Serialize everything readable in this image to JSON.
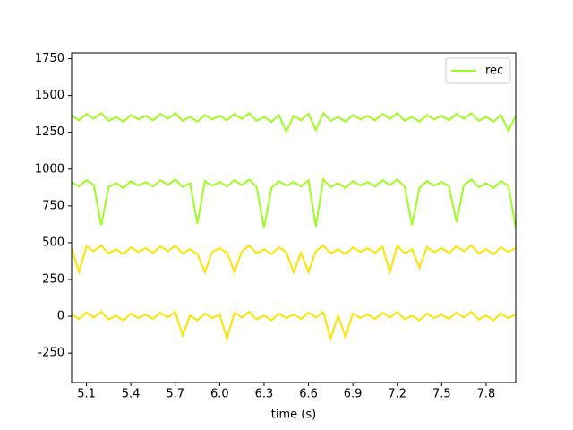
{
  "chart_data": {
    "type": "line",
    "xlabel": "time (s)",
    "x": [
      5.0,
      5.05,
      5.1,
      5.15,
      5.2,
      5.25,
      5.3,
      5.35,
      5.4,
      5.45,
      5.5,
      5.55,
      5.6,
      5.65,
      5.7,
      5.75,
      5.8,
      5.85,
      5.9,
      5.95,
      6.0,
      6.05,
      6.1,
      6.15,
      6.2,
      6.25,
      6.3,
      6.35,
      6.4,
      6.45,
      6.5,
      6.55,
      6.6,
      6.65,
      6.7,
      6.75,
      6.8,
      6.85,
      6.9,
      6.95,
      7.0,
      7.05,
      7.1,
      7.15,
      7.2,
      7.25,
      7.3,
      7.35,
      7.4,
      7.45,
      7.5,
      7.55,
      7.6,
      7.65,
      7.7,
      7.75,
      7.8,
      7.85,
      7.9,
      7.95,
      8.0
    ],
    "series": [
      {
        "name": "rec",
        "color": "#9cff1e",
        "values": [
          1362,
          1332,
          1375,
          1342,
          1380,
          1328,
          1355,
          1322,
          1368,
          1338,
          1362,
          1332,
          1375,
          1342,
          1380,
          1328,
          1355,
          1322,
          1368,
          1338,
          1362,
          1332,
          1375,
          1342,
          1380,
          1328,
          1355,
          1322,
          1368,
          1255,
          1362,
          1332,
          1375,
          1265,
          1380,
          1328,
          1355,
          1322,
          1368,
          1338,
          1362,
          1332,
          1375,
          1342,
          1380,
          1328,
          1355,
          1322,
          1368,
          1338,
          1362,
          1332,
          1375,
          1342,
          1380,
          1328,
          1355,
          1322,
          1368,
          1260,
          1362
        ]
      },
      {
        "color": "#9cff1e",
        "values": [
          912,
          882,
          925,
          892,
          620,
          878,
          905,
          872,
          918,
          888,
          912,
          882,
          925,
          892,
          930,
          878,
          905,
          630,
          918,
          888,
          912,
          882,
          925,
          892,
          930,
          878,
          600,
          872,
          918,
          888,
          912,
          882,
          925,
          610,
          930,
          878,
          905,
          872,
          918,
          888,
          912,
          882,
          925,
          892,
          930,
          878,
          620,
          872,
          918,
          888,
          912,
          882,
          640,
          892,
          930,
          878,
          905,
          872,
          918,
          888,
          600
        ]
      },
      {
        "color": "#ffe400",
        "values": [
          462,
          300,
          475,
          442,
          480,
          428,
          455,
          422,
          468,
          438,
          462,
          432,
          475,
          442,
          480,
          428,
          455,
          422,
          300,
          438,
          462,
          432,
          300,
          442,
          480,
          428,
          455,
          422,
          468,
          438,
          300,
          432,
          300,
          442,
          480,
          428,
          455,
          422,
          468,
          438,
          462,
          432,
          475,
          300,
          480,
          428,
          455,
          330,
          468,
          438,
          462,
          432,
          475,
          442,
          480,
          428,
          455,
          422,
          468,
          438,
          462
        ]
      },
      {
        "color": "#ffe400",
        "values": [
          12,
          -18,
          25,
          -8,
          30,
          -22,
          5,
          -28,
          18,
          -12,
          12,
          -18,
          25,
          -8,
          30,
          -130,
          5,
          -28,
          18,
          -12,
          12,
          -150,
          25,
          -8,
          30,
          -22,
          5,
          -28,
          18,
          -12,
          12,
          -18,
          25,
          -8,
          30,
          -150,
          5,
          -140,
          18,
          -12,
          12,
          -18,
          25,
          -8,
          30,
          -22,
          5,
          -28,
          18,
          -12,
          12,
          -18,
          25,
          -8,
          30,
          -22,
          5,
          -28,
          18,
          -12,
          12
        ]
      }
    ],
    "xlim": [
      5.0,
      8.0
    ],
    "xticks": [
      5.1,
      5.4,
      5.7,
      {
        "value": 6,
        "label": "6.0"
      },
      6.3,
      6.6,
      6.9,
      7.2,
      7.5,
      7.8
    ],
    "ylim": [
      -450,
      1790
    ],
    "yticks": [
      -250,
      0,
      250,
      500,
      750,
      1000,
      1250,
      1500,
      1750
    ],
    "legend": "upper right"
  }
}
